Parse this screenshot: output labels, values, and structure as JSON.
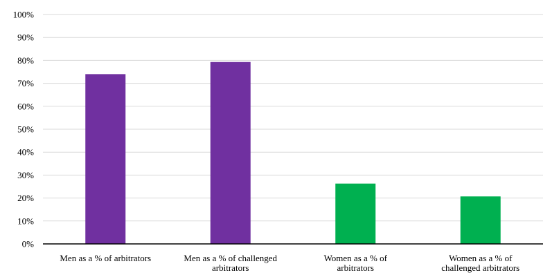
{
  "chart_data": {
    "type": "bar",
    "title": "",
    "xlabel": "",
    "ylabel": "",
    "ylim": [
      0,
      100
    ],
    "y_ticks": [
      "0%",
      "10%",
      "20%",
      "30%",
      "40%",
      "50%",
      "60%",
      "70%",
      "80%",
      "90%",
      "100%"
    ],
    "grid": true,
    "legend": "none",
    "categories": [
      [
        "Men as a % of arbitrators"
      ],
      [
        "Men as a % of challenged",
        "arbitrators"
      ],
      [
        "Women as a % of",
        "arbitrators"
      ],
      [
        "Women as a % of",
        "challenged arbitrators"
      ]
    ],
    "values": [
      74,
      79.3,
      26.3,
      20.7
    ],
    "colors": [
      "#7030a0",
      "#7030a0",
      "#00b050",
      "#00b050"
    ]
  }
}
